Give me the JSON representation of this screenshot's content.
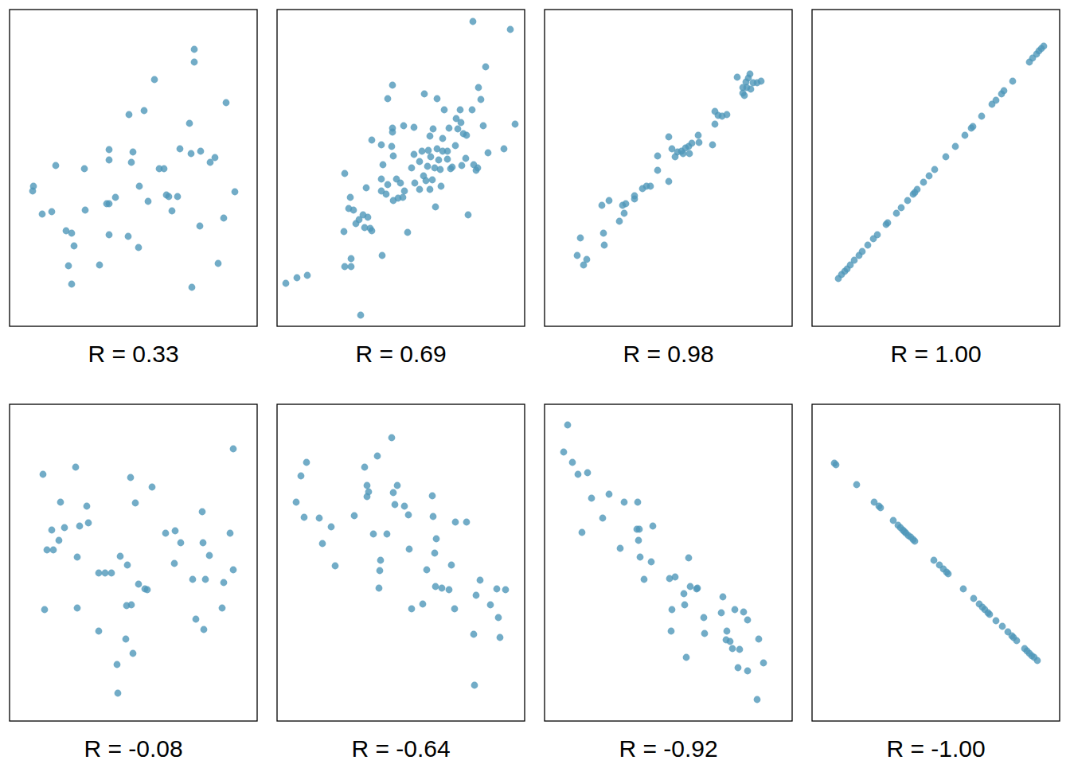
{
  "chart_data": [
    {
      "type": "scatter",
      "xlabel": "R = 0.33",
      "color": "#4f97b9",
      "marker": "circle",
      "tick_labels": false,
      "xlim": [
        0,
        311
      ],
      "ylim": [
        0,
        398
      ],
      "x": [
        29,
        30,
        41,
        53,
        58,
        71,
        78,
        81,
        74,
        78,
        94,
        95,
        113,
        125,
        125,
        122,
        125,
        125,
        133,
        149,
        155,
        153,
        163,
        162,
        150,
        169,
        174,
        182,
        188,
        194,
        197,
        200,
        204,
        211,
        214,
        226,
        228,
        232,
        232,
        240,
        239,
        229,
        252,
        258,
        262,
        269,
        272,
        283
      ],
      "values": [
        170,
        176,
        141,
        144,
        202,
        120,
        117,
        101,
        76,
        53,
        198,
        146,
        77,
        222,
        209,
        154,
        154,
        115,
        162,
        113,
        219,
        206,
        176,
        99,
        266,
        271,
        157,
        310,
        198,
        198,
        165,
        163,
        145,
        163,
        223,
        255,
        217,
        348,
        332,
        220,
        126,
        49,
        206,
        212,
        79,
        136,
        281,
        169
      ]
    },
    {
      "type": "scatter",
      "xlabel": "R = 0.69",
      "color": "#4f97b9",
      "marker": "circle",
      "tick_labels": false,
      "xlim": [
        0,
        311
      ],
      "ylim": [
        0,
        398
      ],
      "x": [
        11,
        25,
        38,
        85,
        93,
        93,
        105,
        132,
        84,
        90,
        96,
        99,
        103,
        108,
        110,
        117,
        119,
        114,
        92,
        85,
        112,
        119,
        131,
        133,
        131,
        131,
        137,
        139,
        139,
        145,
        145,
        145,
        144,
        150,
        146,
        146,
        152,
        158,
        160,
        155,
        159,
        164,
        169,
        172,
        173,
        179,
        179,
        184,
        185,
        187,
        189,
        190,
        192,
        192,
        193,
        195,
        196,
        198,
        199,
        201,
        201,
        203,
        205,
        206,
        208,
        208,
        210,
        214,
        214,
        216,
        218,
        220,
        224,
        225,
        227,
        230,
        231,
        234,
        232,
        237,
        238,
        240,
        247,
        245,
        250,
        252,
        253,
        256,
        246,
        262,
        265,
        285,
        293,
        299,
        259,
        172,
        182
      ],
      "values": [
        54,
        61,
        64,
        75,
        85,
        75,
        14,
        89,
        119,
        148,
        146,
        129,
        134,
        140,
        124,
        123,
        120,
        137,
        162,
        192,
        174,
        234,
        228,
        203,
        185,
        170,
        166,
        178,
        286,
        303,
        249,
        244,
        226,
        185,
        214,
        158,
        161,
        162,
        170,
        180,
        252,
        118,
        199,
        216,
        180,
        207,
        172,
        189,
        292,
        183,
        201,
        221,
        172,
        239,
        213,
        184,
        248,
        199,
        150,
        286,
        223,
        209,
        197,
        176,
        220,
        236,
        272,
        220,
        210,
        249,
        198,
        200,
        227,
        261,
        248,
        272,
        256,
        242,
        202,
        211,
        240,
        140,
        203,
        272,
        196,
        199,
        300,
        285,
        383,
        326,
        218,
        223,
        373,
        254,
        252,
        250,
        220
      ]
    },
    {
      "type": "scatter",
      "xlabel": "R = 0.98",
      "color": "#4f97b9",
      "marker": "circle",
      "tick_labels": false,
      "xlim": [
        0,
        311
      ],
      "ylim": [
        0,
        398
      ],
      "x": [
        41,
        49,
        53,
        45,
        75,
        74,
        72,
        81,
        94,
        100,
        98,
        102,
        113,
        113,
        123,
        128,
        133,
        142,
        156,
        142,
        156,
        160,
        164,
        167,
        172,
        174,
        177,
        181,
        182,
        185,
        193,
        194,
        211,
        214,
        214,
        218,
        223,
        229,
        242,
        249,
        251,
        253,
        254,
        256,
        258,
        262,
        267,
        272,
        259,
        249
      ],
      "values": [
        89,
        77,
        84,
        111,
        102,
        117,
        152,
        158,
        132,
        142,
        152,
        154,
        160,
        164,
        173,
        176,
        176,
        196,
        182,
        214,
        238,
        223,
        213,
        219,
        220,
        217,
        224,
        226,
        217,
        230,
        240,
        231,
        228,
        254,
        270,
        265,
        264,
        266,
        313,
        293,
        290,
        307,
        300,
        312,
        317,
        306,
        306,
        308,
        298,
        300
      ]
    },
    {
      "type": "scatter",
      "xlabel": "R = 1.00",
      "color": "#4f97b9",
      "marker": "circle",
      "tick_labels": false,
      "xlim": [
        0,
        311
      ],
      "ylim": [
        0,
        398
      ],
      "x": [
        33,
        37,
        41,
        44,
        48,
        53,
        59,
        63,
        70,
        77,
        82,
        93,
        95,
        106,
        112,
        120,
        127,
        129,
        132,
        140,
        147,
        154,
        168,
        180,
        192,
        200,
        202,
        213,
        226,
        231,
        238,
        241,
        252,
        273,
        277,
        282,
        285,
        288,
        291
      ],
      "values": [
        60,
        65,
        69,
        72,
        77,
        83,
        89,
        94,
        102,
        110,
        115,
        128,
        130,
        142,
        149,
        158,
        166,
        168,
        172,
        181,
        189,
        197,
        213,
        226,
        240,
        249,
        251,
        264,
        279,
        284,
        292,
        296,
        308,
        332,
        337,
        342,
        346,
        349,
        352
      ]
    },
    {
      "type": "scatter",
      "xlabel": "R = -0.08",
      "color": "#4f97b9",
      "marker": "circle",
      "tick_labels": false,
      "xlim": [
        0,
        311
      ],
      "ylim": [
        0,
        398
      ],
      "x": [
        42,
        44,
        47,
        55,
        53,
        62,
        64,
        69,
        83,
        85,
        85,
        88,
        97,
        99,
        112,
        112,
        120,
        128,
        136,
        135,
        139,
        146,
        148,
        152,
        147,
        153,
        155,
        158,
        162,
        170,
        173,
        179,
        196,
        207,
        208,
        215,
        230,
        234,
        243,
        242,
        244,
        251,
        246,
        267,
        269,
        277,
        281,
        281
      ],
      "values": [
        310,
        140,
        215,
        215,
        240,
        227,
        275,
        243,
        319,
        206,
        142,
        245,
        270,
        249,
        113,
        186,
        186,
        186,
        35,
        71,
        207,
        103,
        196,
        306,
        145,
        146,
        85,
        274,
        172,
        166,
        165,
        294,
        236,
        198,
        239,
        224,
        178,
        128,
        224,
        263,
        115,
        208,
        178,
        142,
        174,
        236,
        190,
        342
      ]
    },
    {
      "type": "scatter",
      "xlabel": "R = -0.64",
      "color": "#4f97b9",
      "marker": "circle",
      "tick_labels": false,
      "xlim": [
        0,
        311
      ],
      "ylim": [
        0,
        398
      ],
      "x": [
        24,
        30,
        37,
        34,
        53,
        57,
        68,
        73,
        97,
        110,
        113,
        113,
        115,
        126,
        144,
        121,
        138,
        130,
        129,
        128,
        146,
        148,
        160,
        165,
        166,
        183,
        169,
        188,
        195,
        196,
        200,
        198,
        199,
        207,
        219,
        216,
        224,
        238,
        223,
        250,
        255,
        247,
        248,
        268,
        276,
        287,
        278,
        280,
        151
      ],
      "values": [
        275,
        308,
        325,
        256,
        255,
        223,
        244,
        195,
        258,
        319,
        296,
        282,
        288,
        333,
        356,
        235,
        235,
        202,
        189,
        167,
        287,
        272,
        270,
        259,
        216,
        147,
        141,
        190,
        283,
        257,
        229,
        211,
        169,
        167,
        196,
        165,
        250,
        250,
        141,
        158,
        177,
        109,
        45,
        146,
        166,
        165,
        130,
        105,
        296
      ]
    },
    {
      "type": "scatter",
      "xlabel": "R = -0.92",
      "color": "#4f97b9",
      "marker": "circle",
      "tick_labels": false,
      "xlim": [
        0,
        311
      ],
      "ylim": [
        0,
        398
      ],
      "x": [
        29,
        24,
        35,
        42,
        54,
        59,
        47,
        73,
        81,
        100,
        117,
        95,
        116,
        119,
        118,
        136,
        120,
        134,
        125,
        157,
        164,
        181,
        183,
        175,
        192,
        160,
        159,
        178,
        200,
        201,
        224,
        222,
        229,
        228,
        239,
        250,
        255,
        233,
        236,
        245,
        269,
        243,
        255,
        275,
        267,
        191,
        176
      ],
      "values": [
        372,
        338,
        325,
        310,
        312,
        280,
        237,
        255,
        285,
        275,
        275,
        217,
        241,
        241,
        227,
        245,
        206,
        200,
        178,
        179,
        181,
        205,
        169,
        160,
        167,
        140,
        113,
        80,
        130,
        110,
        156,
        136,
        113,
        102,
        140,
        137,
        127,
        100,
        91,
        90,
        103,
        67,
        63,
        73,
        27,
        166,
        146
      ]
    },
    {
      "type": "scatter",
      "xlabel": "R = -1.00",
      "color": "#4f97b9",
      "marker": "circle",
      "tick_labels": false,
      "xlim": [
        0,
        311
      ],
      "ylim": [
        0,
        398
      ],
      "x": [
        28,
        30,
        56,
        78,
        84,
        86,
        102,
        108,
        111,
        114,
        116,
        118,
        121,
        124,
        127,
        129,
        153,
        160,
        165,
        169,
        171,
        190,
        203,
        210,
        214,
        217,
        221,
        223,
        231,
        239,
        246,
        251,
        253,
        257,
        267,
        270,
        273,
        276,
        279,
        283
      ],
      "values": [
        324,
        322,
        297,
        275,
        270,
        268,
        252,
        246,
        243,
        240,
        238,
        236,
        233,
        231,
        228,
        226,
        202,
        196,
        191,
        187,
        185,
        166,
        154,
        147,
        143,
        140,
        136,
        134,
        126,
        119,
        112,
        107,
        105,
        101,
        91,
        88,
        85,
        82,
        80,
        76
      ]
    }
  ]
}
